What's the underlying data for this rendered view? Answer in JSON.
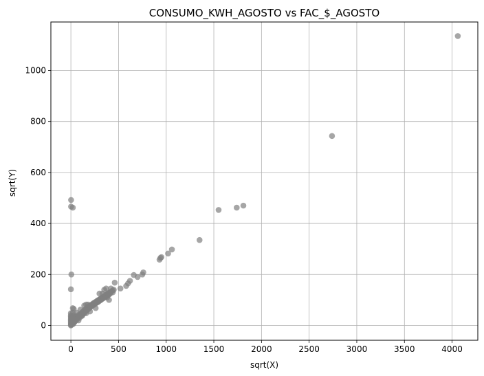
{
  "chart_data": {
    "type": "scatter",
    "title": "CONSUMO_KWH_AGOSTO vs FAC_$_AGOSTO",
    "xlabel": "sqrt(X)",
    "ylabel": "sqrt(Y)",
    "xlim": [
      -210,
      4270
    ],
    "ylim": [
      -58,
      1190
    ],
    "xticks": [
      0,
      500,
      1000,
      1500,
      2000,
      2500,
      3000,
      3500,
      4000
    ],
    "yticks": [
      0,
      200,
      400,
      600,
      800,
      1000
    ],
    "grid": true,
    "color": "#808080",
    "series": [
      {
        "points": [
          [
            0,
            0
          ],
          [
            0,
            5
          ],
          [
            0,
            10
          ],
          [
            0,
            15
          ],
          [
            0,
            20
          ],
          [
            0,
            25
          ],
          [
            0,
            30
          ],
          [
            0,
            35
          ],
          [
            0,
            40
          ],
          [
            0,
            48
          ],
          [
            2,
            2
          ],
          [
            3,
            8
          ],
          [
            5,
            12
          ],
          [
            5,
            22
          ],
          [
            8,
            4
          ],
          [
            10,
            18
          ],
          [
            10,
            30
          ],
          [
            12,
            8
          ],
          [
            15,
            25
          ],
          [
            18,
            12
          ],
          [
            20,
            35
          ],
          [
            22,
            5
          ],
          [
            25,
            15
          ],
          [
            28,
            28
          ],
          [
            30,
            10
          ],
          [
            32,
            40
          ],
          [
            35,
            20
          ],
          [
            38,
            14
          ],
          [
            40,
            30
          ],
          [
            45,
            18
          ],
          [
            50,
            25
          ],
          [
            55,
            35
          ],
          [
            60,
            22
          ],
          [
            65,
            30
          ],
          [
            70,
            38
          ],
          [
            75,
            28
          ],
          [
            80,
            35
          ],
          [
            85,
            42
          ],
          [
            90,
            30
          ],
          [
            95,
            38
          ],
          [
            100,
            45
          ],
          [
            105,
            35
          ],
          [
            110,
            48
          ],
          [
            115,
            40
          ],
          [
            120,
            52
          ],
          [
            125,
            45
          ],
          [
            130,
            55
          ],
          [
            135,
            48
          ],
          [
            140,
            60
          ],
          [
            145,
            50
          ],
          [
            150,
            62
          ],
          [
            155,
            55
          ],
          [
            160,
            65
          ],
          [
            165,
            58
          ],
          [
            170,
            70
          ],
          [
            175,
            62
          ],
          [
            180,
            72
          ],
          [
            185,
            65
          ],
          [
            190,
            75
          ],
          [
            195,
            68
          ],
          [
            200,
            78
          ],
          [
            205,
            72
          ],
          [
            210,
            80
          ],
          [
            215,
            75
          ],
          [
            220,
            82
          ],
          [
            225,
            78
          ],
          [
            230,
            85
          ],
          [
            235,
            80
          ],
          [
            240,
            88
          ],
          [
            245,
            82
          ],
          [
            250,
            90
          ],
          [
            255,
            85
          ],
          [
            260,
            92
          ],
          [
            265,
            88
          ],
          [
            270,
            95
          ],
          [
            275,
            90
          ],
          [
            280,
            98
          ],
          [
            285,
            92
          ],
          [
            290,
            100
          ],
          [
            295,
            95
          ],
          [
            300,
            102
          ],
          [
            305,
            98
          ],
          [
            310,
            105
          ],
          [
            315,
            100
          ],
          [
            320,
            108
          ],
          [
            325,
            103
          ],
          [
            330,
            110
          ],
          [
            335,
            106
          ],
          [
            340,
            112
          ],
          [
            345,
            108
          ],
          [
            350,
            115
          ],
          [
            355,
            110
          ],
          [
            360,
            118
          ],
          [
            365,
            113
          ],
          [
            370,
            120
          ],
          [
            375,
            116
          ],
          [
            380,
            122
          ],
          [
            385,
            118
          ],
          [
            390,
            125
          ],
          [
            395,
            120
          ],
          [
            400,
            128
          ],
          [
            405,
            123
          ],
          [
            410,
            130
          ],
          [
            415,
            126
          ],
          [
            420,
            132
          ],
          [
            430,
            135
          ],
          [
            440,
            138
          ],
          [
            450,
            140
          ],
          [
            100,
            62
          ],
          [
            120,
            38
          ],
          [
            140,
            78
          ],
          [
            160,
            48
          ],
          [
            180,
            82
          ],
          [
            200,
            55
          ],
          [
            160,
            82
          ],
          [
            260,
            68
          ],
          [
            300,
            125
          ],
          [
            350,
            140
          ],
          [
            370,
            145
          ],
          [
            400,
            100
          ],
          [
            420,
            145
          ],
          [
            460,
            168
          ],
          [
            330,
            125
          ],
          [
            380,
            110
          ],
          [
            440,
            130
          ],
          [
            60,
            50
          ],
          [
            80,
            20
          ],
          [
            40,
            15
          ],
          [
            30,
            65
          ],
          [
            20,
            50
          ],
          [
            2,
            492
          ],
          [
            2,
            466
          ],
          [
            20,
            462
          ],
          [
            5,
            200
          ],
          [
            0,
            142
          ],
          [
            20,
            68
          ],
          [
            520,
            145
          ],
          [
            580,
            155
          ],
          [
            600,
            165
          ],
          [
            620,
            175
          ],
          [
            660,
            198
          ],
          [
            700,
            190
          ],
          [
            750,
            200
          ],
          [
            760,
            208
          ],
          [
            930,
            258
          ],
          [
            940,
            265
          ],
          [
            950,
            268
          ],
          [
            1020,
            282
          ],
          [
            1060,
            298
          ],
          [
            1350,
            335
          ],
          [
            1550,
            453
          ],
          [
            1740,
            462
          ],
          [
            1810,
            470
          ],
          [
            2740,
            743
          ],
          [
            4060,
            1135
          ]
        ]
      }
    ]
  }
}
